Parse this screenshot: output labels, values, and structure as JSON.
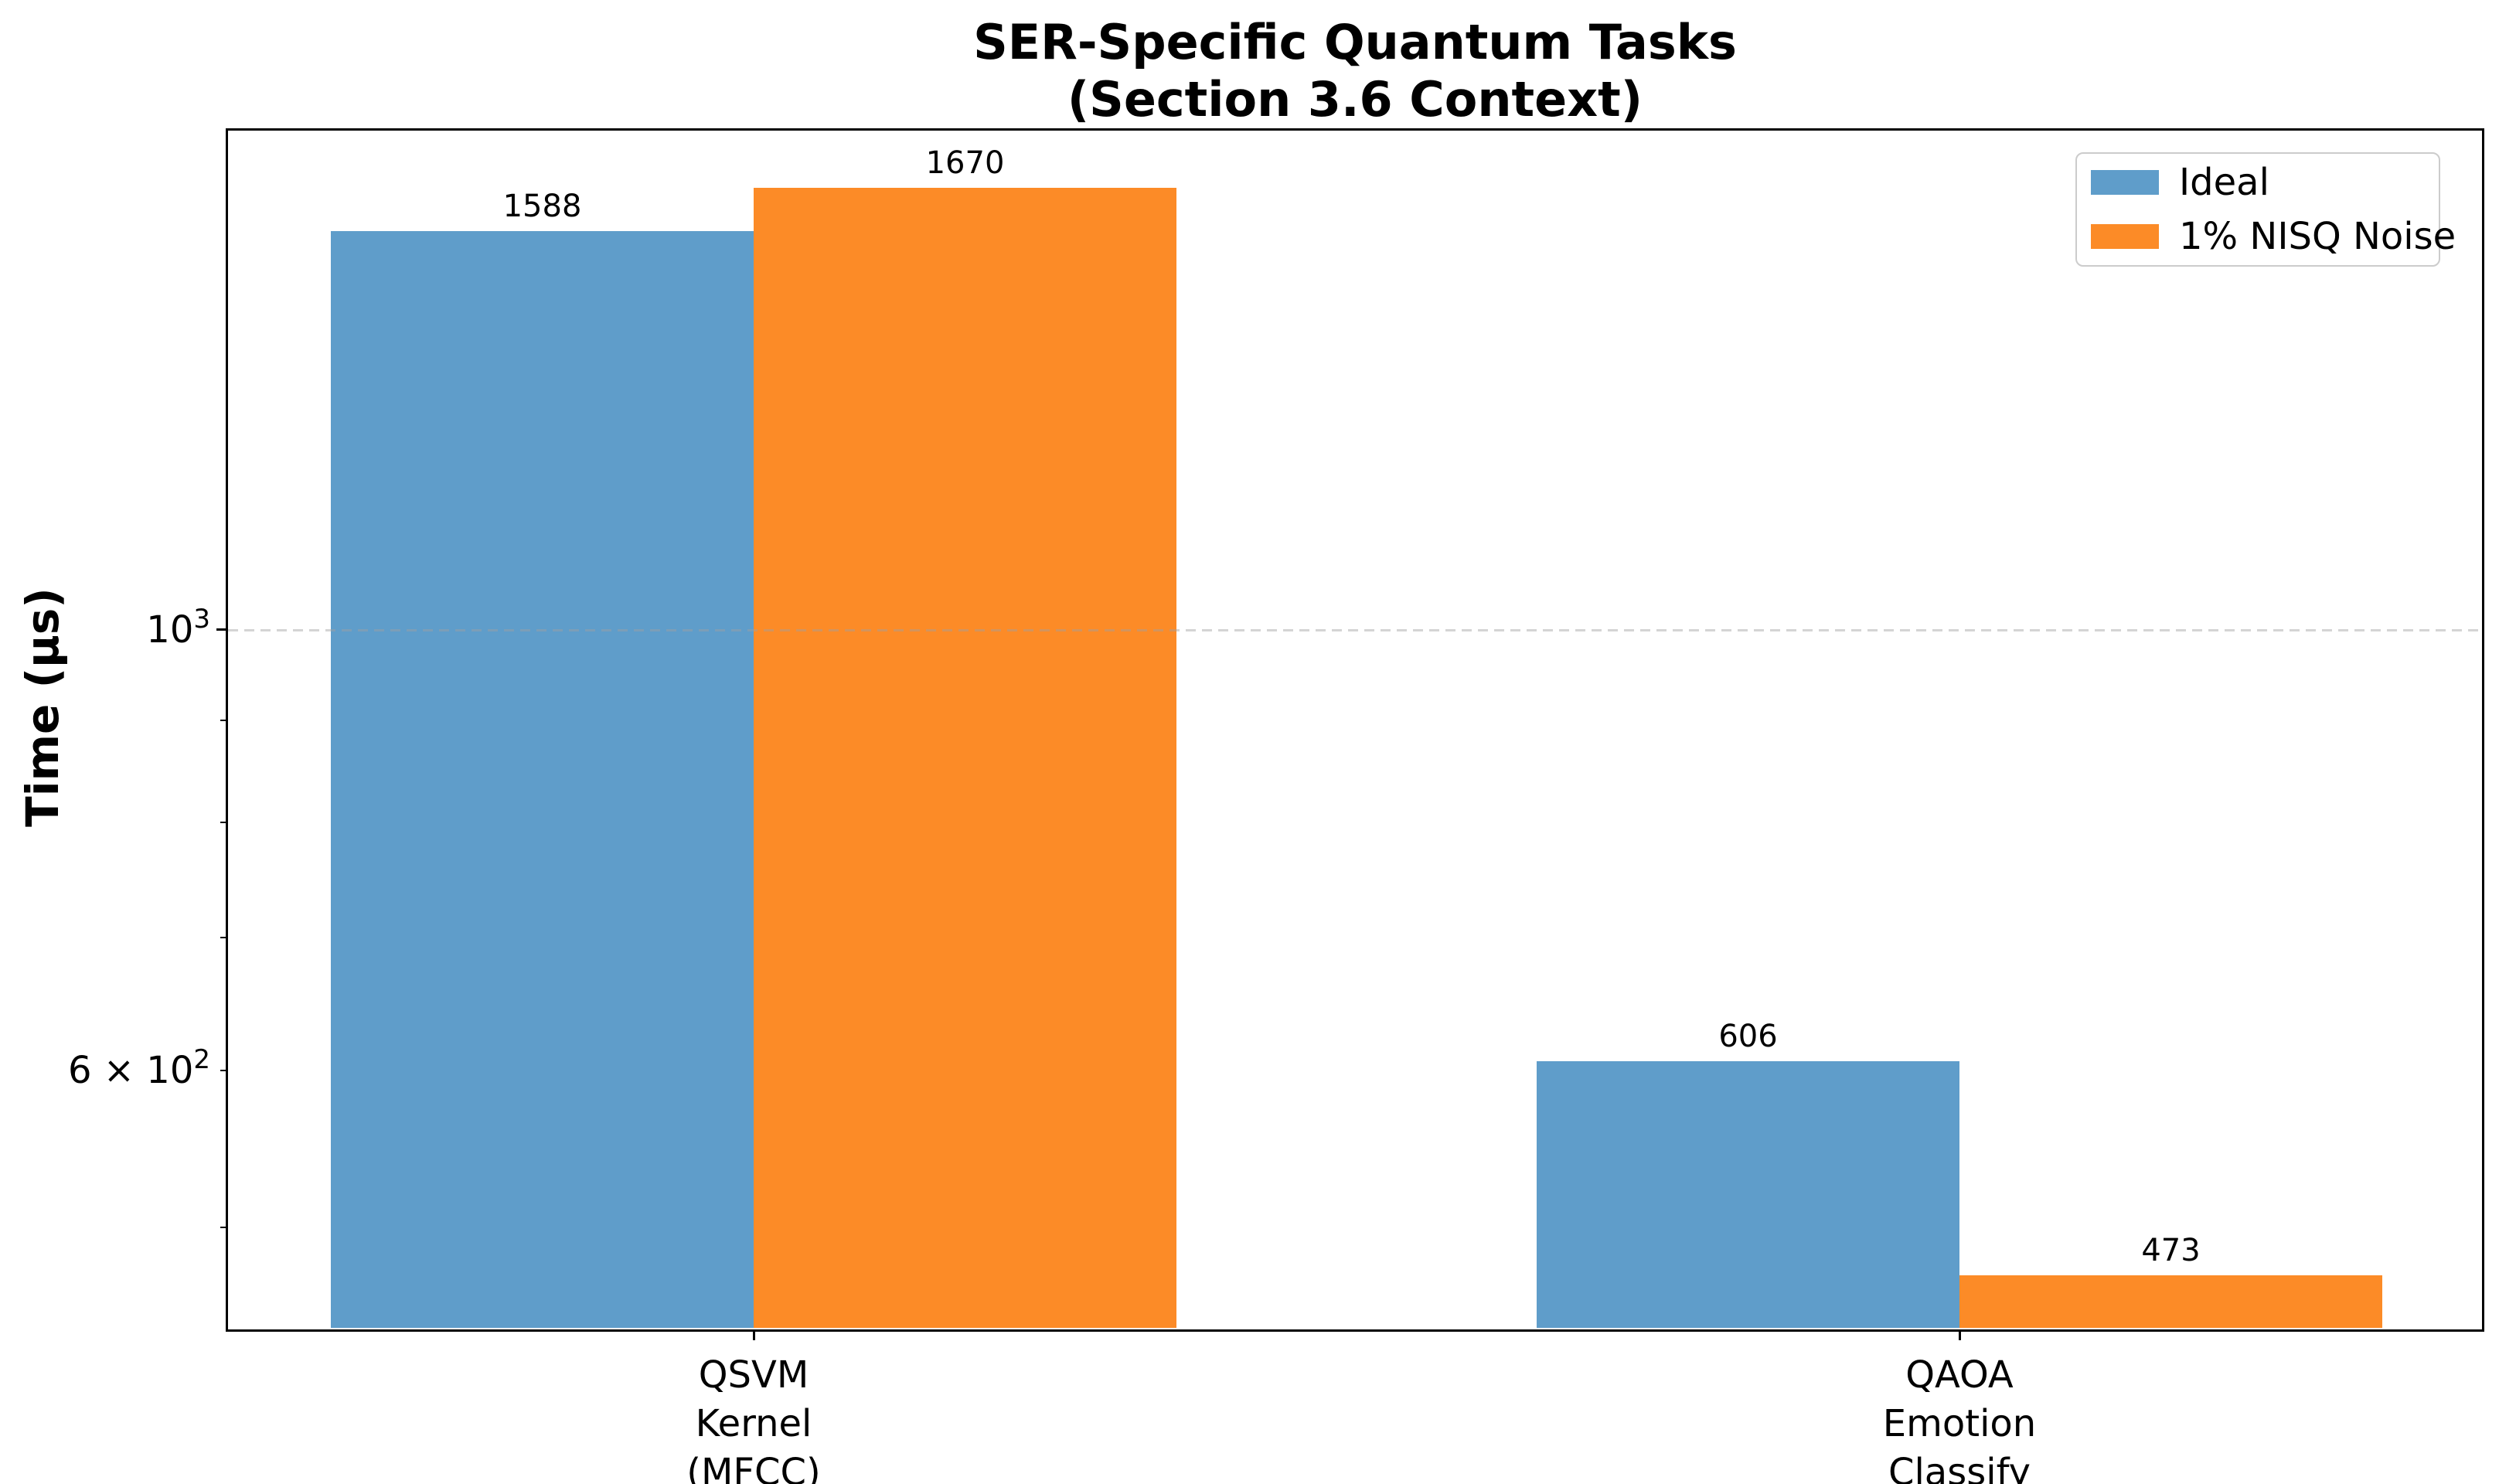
{
  "chart_data": {
    "type": "bar",
    "title": "SER-Specific Quantum Tasks\n(Section 3.6 Context)",
    "xlabel": "",
    "ylabel": "Time (μs)",
    "yscale": "log",
    "ylim": [
      445,
      1787
    ],
    "grid": {
      "on": true,
      "axis": "y",
      "style": "dashed",
      "values": [
        1000
      ]
    },
    "categories": [
      "QSVM\nKernel\n(MFCC)",
      "QAOA\nEmotion\nClassify"
    ],
    "series": [
      {
        "name": "Ideal",
        "color": "#5f9dca",
        "values": [
          1588,
          606
        ]
      },
      {
        "name": "1% NISQ Noise",
        "color": "#fc8b27",
        "values": [
          1670,
          473
        ]
      }
    ],
    "bar_value_labels": [
      [
        "1588",
        "606"
      ],
      [
        "1670",
        "473"
      ]
    ],
    "y_ticks": [
      {
        "value": 1000,
        "label_main": "10",
        "label_sup": "3",
        "major": true
      },
      {
        "value": 900,
        "label_main": "",
        "label_sup": "",
        "major": false
      },
      {
        "value": 800,
        "label_main": "",
        "label_sup": "",
        "major": false
      },
      {
        "value": 700,
        "label_main": "",
        "label_sup": "",
        "major": false
      },
      {
        "value": 600,
        "label_main": "6 × 10",
        "label_sup": "2",
        "major": false
      },
      {
        "value": 500,
        "label_main": "",
        "label_sup": "",
        "major": false
      }
    ],
    "legend": {
      "position": "upper right",
      "entries": [
        "Ideal",
        "1% NISQ Noise"
      ]
    }
  },
  "colors": {
    "bar_ideal": "#5f9dca",
    "bar_noise": "#fc8b27",
    "axis": "#000000",
    "gridline": "#a0a0a0",
    "legend_border": "#cccccc",
    "background": "#ffffff"
  }
}
